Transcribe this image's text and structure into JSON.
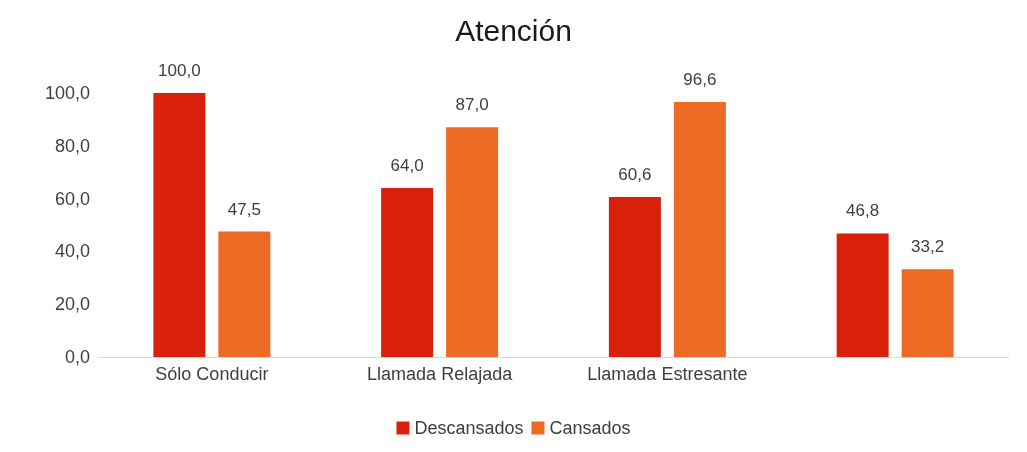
{
  "chart_data": {
    "type": "bar",
    "title": "Atención",
    "categories": [
      "Sólo Conducir",
      "Llamada Relajada",
      "Llamada Estresante",
      null
    ],
    "series": [
      {
        "name": "Descansados",
        "color": "#d9200a",
        "values": [
          100.0,
          64.0,
          60.6,
          46.8
        ],
        "value_labels": [
          "100,0",
          "64,0",
          "60,6",
          "46,8"
        ]
      },
      {
        "name": "Cansados",
        "color": "#ec6a24",
        "values": [
          47.5,
          87.0,
          96.6,
          33.2
        ],
        "value_labels": [
          "47,5",
          "87,0",
          "96,6",
          "33,2"
        ]
      }
    ],
    "ylim": [
      0,
      100
    ],
    "yticks": [
      {
        "value": 0,
        "label": "0,0"
      },
      {
        "value": 20,
        "label": "20,0"
      },
      {
        "value": 40,
        "label": "40,0"
      },
      {
        "value": 60,
        "label": "60,0"
      },
      {
        "value": 80,
        "label": "80,0"
      },
      {
        "value": 100,
        "label": "100,0"
      }
    ],
    "grid": false,
    "legend": "bottom"
  }
}
